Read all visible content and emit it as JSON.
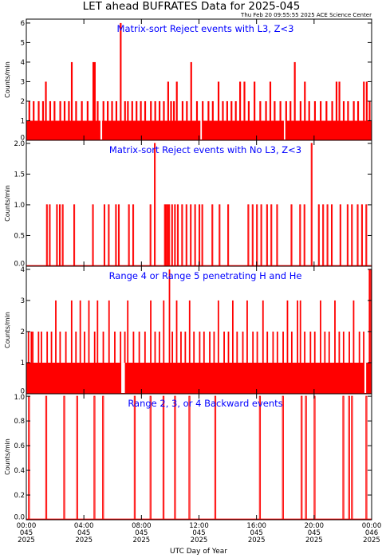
{
  "title": "LET ahead BUFRATES Data for 2025-045",
  "timestamp": "Thu Feb 20 09:55:55 2025 ACE Science Center",
  "colors": {
    "data": "#ff0000",
    "panel_title": "#0000ff",
    "axes": "#000000",
    "background": "#ffffff"
  },
  "x_axis": {
    "label": "UTC Day of Year",
    "ticks": [
      {
        "time": "00:00",
        "day": "045",
        "year": "2025"
      },
      {
        "time": "04:00",
        "day": "045",
        "year": "2025"
      },
      {
        "time": "08:00",
        "day": "045",
        "year": "2025"
      },
      {
        "time": "12:00",
        "day": "045",
        "year": "2025"
      },
      {
        "time": "16:00",
        "day": "045",
        "year": "2025"
      },
      {
        "time": "20:00",
        "day": "045",
        "year": "2025"
      },
      {
        "time": "00:00",
        "day": "046",
        "year": "2025"
      }
    ]
  },
  "chart_data": [
    {
      "type": "line",
      "title": "Matrix-sort Reject events with L3, Z<3",
      "ylabel": "Counts/min",
      "xlim": [
        0,
        24
      ],
      "ylim": [
        0,
        6.2
      ],
      "yticks": [
        "0",
        "1",
        "2",
        "3",
        "4",
        "5",
        "6"
      ],
      "baseline": 1,
      "step": 0.12,
      "spikes": [
        [
          0.15,
          2
        ],
        [
          0.45,
          2
        ],
        [
          0.8,
          2
        ],
        [
          1.1,
          2
        ],
        [
          1.3,
          3
        ],
        [
          1.6,
          2
        ],
        [
          1.9,
          2
        ],
        [
          2.3,
          2
        ],
        [
          2.6,
          2
        ],
        [
          2.9,
          2
        ],
        [
          3.1,
          4
        ],
        [
          3.4,
          2
        ],
        [
          3.8,
          2
        ],
        [
          4.2,
          2
        ],
        [
          4.6,
          4
        ],
        [
          4.7,
          4
        ],
        [
          4.9,
          2
        ],
        [
          5.3,
          2
        ],
        [
          5.6,
          2
        ],
        [
          5.9,
          2
        ],
        [
          6.2,
          2
        ],
        [
          6.5,
          6
        ],
        [
          6.8,
          2
        ],
        [
          7.0,
          2
        ],
        [
          7.3,
          2
        ],
        [
          7.6,
          2
        ],
        [
          7.9,
          2
        ],
        [
          8.2,
          2
        ],
        [
          8.6,
          2
        ],
        [
          8.9,
          2
        ],
        [
          9.2,
          2
        ],
        [
          9.5,
          2
        ],
        [
          9.8,
          3
        ],
        [
          10.0,
          2
        ],
        [
          10.2,
          2
        ],
        [
          10.4,
          3
        ],
        [
          10.8,
          2
        ],
        [
          11.1,
          2
        ],
        [
          11.4,
          4
        ],
        [
          11.8,
          2
        ],
        [
          12.2,
          2
        ],
        [
          12.6,
          2
        ],
        [
          12.9,
          2
        ],
        [
          13.3,
          3
        ],
        [
          13.6,
          2
        ],
        [
          13.9,
          2
        ],
        [
          14.2,
          2
        ],
        [
          14.5,
          2
        ],
        [
          14.8,
          3
        ],
        [
          15.1,
          3
        ],
        [
          15.4,
          2
        ],
        [
          15.8,
          3
        ],
        [
          16.2,
          2
        ],
        [
          16.6,
          2
        ],
        [
          16.9,
          3
        ],
        [
          17.2,
          2
        ],
        [
          17.6,
          2
        ],
        [
          18.0,
          2
        ],
        [
          18.3,
          2
        ],
        [
          18.6,
          4
        ],
        [
          19.0,
          2
        ],
        [
          19.3,
          3
        ],
        [
          19.6,
          2
        ],
        [
          20.0,
          2
        ],
        [
          20.4,
          2
        ],
        [
          20.8,
          2
        ],
        [
          21.2,
          2
        ],
        [
          21.5,
          3
        ],
        [
          21.7,
          3
        ],
        [
          22.0,
          2
        ],
        [
          22.3,
          2
        ],
        [
          22.7,
          2
        ],
        [
          23.0,
          2
        ],
        [
          23.4,
          3
        ],
        [
          23.6,
          3
        ],
        [
          23.8,
          2
        ]
      ],
      "gaps": [
        [
          5.15,
          0.12
        ],
        [
          12.1,
          0.1
        ],
        [
          17.9,
          0.1
        ]
      ]
    },
    {
      "type": "line",
      "title": "Matrix-sort Reject events with No L3, Z<3",
      "ylabel": "Counts/min",
      "xlim": [
        0,
        24
      ],
      "ylim": [
        0,
        2.05
      ],
      "yticks": [
        "0.0",
        "0.5",
        "1.0",
        "1.5",
        "2.0"
      ],
      "baseline": 0,
      "step": 0.06,
      "spikes": [
        [
          1.4,
          1
        ],
        [
          1.6,
          1
        ],
        [
          2.1,
          1
        ],
        [
          2.3,
          1
        ],
        [
          2.5,
          1
        ],
        [
          3.3,
          1
        ],
        [
          4.6,
          1
        ],
        [
          5.4,
          1
        ],
        [
          5.7,
          1
        ],
        [
          6.2,
          1
        ],
        [
          6.4,
          1
        ],
        [
          7.1,
          1
        ],
        [
          7.4,
          1
        ],
        [
          8.6,
          1
        ],
        [
          8.9,
          2
        ],
        [
          9.6,
          1
        ],
        [
          9.7,
          1
        ],
        [
          9.8,
          1
        ],
        [
          9.9,
          1
        ],
        [
          10.1,
          1
        ],
        [
          10.3,
          1
        ],
        [
          10.5,
          1
        ],
        [
          10.8,
          1
        ],
        [
          11.1,
          1
        ],
        [
          11.4,
          1
        ],
        [
          11.7,
          1
        ],
        [
          12.0,
          1
        ],
        [
          12.2,
          1
        ],
        [
          12.9,
          1
        ],
        [
          13.4,
          1
        ],
        [
          14.0,
          1
        ],
        [
          15.4,
          1
        ],
        [
          15.7,
          1
        ],
        [
          16.0,
          1
        ],
        [
          16.3,
          1
        ],
        [
          16.7,
          1
        ],
        [
          17.0,
          1
        ],
        [
          17.4,
          1
        ],
        [
          18.4,
          1
        ],
        [
          19.0,
          1
        ],
        [
          19.3,
          1
        ],
        [
          19.8,
          2
        ],
        [
          20.3,
          1
        ],
        [
          20.6,
          1
        ],
        [
          20.9,
          1
        ],
        [
          21.2,
          1
        ],
        [
          21.8,
          1
        ],
        [
          22.3,
          1
        ],
        [
          22.6,
          1
        ],
        [
          23.0,
          1
        ],
        [
          23.3,
          1
        ],
        [
          23.6,
          1
        ]
      ],
      "gaps": []
    },
    {
      "type": "line",
      "title": "Range 4 or Range 5 penetrating H and He",
      "ylabel": "Counts/min",
      "xlim": [
        0,
        24
      ],
      "ylim": [
        0,
        4.1
      ],
      "yticks": [
        "0",
        "1",
        "2",
        "3",
        "4"
      ],
      "baseline": 1,
      "step": 0.1,
      "spikes": [
        [
          0.1,
          2
        ],
        [
          0.3,
          2
        ],
        [
          0.4,
          2
        ],
        [
          0.8,
          2
        ],
        [
          1.0,
          2
        ],
        [
          1.4,
          2
        ],
        [
          1.7,
          2
        ],
        [
          2.0,
          3
        ],
        [
          2.3,
          2
        ],
        [
          2.7,
          2
        ],
        [
          3.1,
          3
        ],
        [
          3.4,
          2
        ],
        [
          3.7,
          3
        ],
        [
          4.0,
          2
        ],
        [
          4.3,
          3
        ],
        [
          4.7,
          2
        ],
        [
          4.9,
          3
        ],
        [
          5.3,
          2
        ],
        [
          5.7,
          3
        ],
        [
          6.1,
          2
        ],
        [
          6.5,
          2
        ],
        [
          6.8,
          2
        ],
        [
          7.0,
          3
        ],
        [
          7.4,
          2
        ],
        [
          7.8,
          2
        ],
        [
          8.2,
          2
        ],
        [
          8.6,
          3
        ],
        [
          8.9,
          2
        ],
        [
          9.2,
          2
        ],
        [
          9.5,
          3
        ],
        [
          9.9,
          4
        ],
        [
          10.1,
          2
        ],
        [
          10.4,
          3
        ],
        [
          10.7,
          2
        ],
        [
          11.0,
          2
        ],
        [
          11.3,
          3
        ],
        [
          11.6,
          2
        ],
        [
          12.0,
          2
        ],
        [
          12.3,
          2
        ],
        [
          12.7,
          2
        ],
        [
          13.0,
          2
        ],
        [
          13.3,
          3
        ],
        [
          13.7,
          2
        ],
        [
          14.0,
          2
        ],
        [
          14.3,
          3
        ],
        [
          14.6,
          2
        ],
        [
          15.0,
          2
        ],
        [
          15.3,
          3
        ],
        [
          15.7,
          2
        ],
        [
          16.0,
          2
        ],
        [
          16.4,
          3
        ],
        [
          16.7,
          2
        ],
        [
          17.1,
          2
        ],
        [
          17.4,
          2
        ],
        [
          17.8,
          2
        ],
        [
          18.1,
          3
        ],
        [
          18.4,
          2
        ],
        [
          18.8,
          3
        ],
        [
          19.0,
          3
        ],
        [
          19.3,
          2
        ],
        [
          19.7,
          2
        ],
        [
          20.0,
          2
        ],
        [
          20.4,
          3
        ],
        [
          20.7,
          2
        ],
        [
          21.0,
          2
        ],
        [
          21.4,
          3
        ],
        [
          21.7,
          2
        ],
        [
          22.0,
          2
        ],
        [
          22.4,
          2
        ],
        [
          22.7,
          3
        ],
        [
          23.1,
          2
        ],
        [
          23.4,
          2
        ],
        [
          23.8,
          4
        ],
        [
          23.9,
          4
        ]
      ],
      "gaps": [
        [
          6.6,
          0.25
        ],
        [
          23.5,
          0.12
        ]
      ]
    },
    {
      "type": "line",
      "title": "Range 2, 3, or 4 Backward events",
      "ylabel": "Counts/min",
      "xlim": [
        0,
        24
      ],
      "ylim": [
        0,
        1.02
      ],
      "yticks": [
        "0.0",
        "0.2",
        "0.4",
        "0.6",
        "0.8",
        "1.0"
      ],
      "baseline": 0,
      "step": 0.07,
      "spikes": [
        [
          0.15,
          1
        ],
        [
          1.35,
          1
        ],
        [
          2.6,
          1
        ],
        [
          3.5,
          1
        ],
        [
          4.7,
          1
        ],
        [
          5.3,
          1
        ],
        [
          7.5,
          1
        ],
        [
          8.6,
          1
        ],
        [
          9.5,
          1
        ],
        [
          10.3,
          1
        ],
        [
          11.3,
          1
        ],
        [
          13.1,
          1
        ],
        [
          16.2,
          1
        ],
        [
          17.8,
          1
        ],
        [
          19.1,
          1
        ],
        [
          19.4,
          1
        ],
        [
          20.0,
          1
        ],
        [
          22.0,
          1
        ],
        [
          22.4,
          1
        ],
        [
          22.6,
          1
        ],
        [
          23.6,
          1
        ]
      ],
      "gaps": []
    }
  ]
}
